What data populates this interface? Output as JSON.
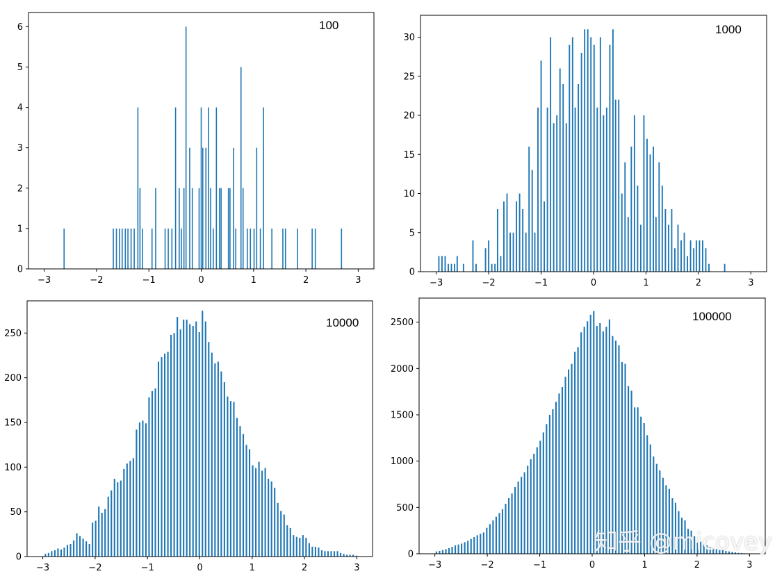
{
  "colors": {
    "bar": "#1f77b4",
    "axis": "#000000",
    "text": "#000000"
  },
  "watermark": {
    "text": "知乎 @micovey"
  },
  "chart_data": [
    {
      "type": "bar",
      "title": "",
      "annotation": "100",
      "xlabel": "",
      "ylabel": "",
      "xlim": [
        -3.3,
        3.3
      ],
      "ylim": [
        0,
        6.35
      ],
      "xticks": [
        -3,
        -2,
        -1,
        0,
        1,
        2,
        3
      ],
      "yticks": [
        0,
        1,
        2,
        3,
        4,
        5,
        6
      ],
      "bar_width": 0.02,
      "x": [
        -2.62,
        -1.68,
        -1.62,
        -1.56,
        -1.51,
        -1.45,
        -1.4,
        -1.34,
        -1.28,
        -1.21,
        -1.17,
        -1.12,
        -0.94,
        -0.87,
        -0.69,
        -0.63,
        -0.56,
        -0.49,
        -0.42,
        -0.38,
        -0.33,
        -0.29,
        -0.22,
        -0.17,
        -0.04,
        0.0,
        0.03,
        0.09,
        0.14,
        0.18,
        0.23,
        0.29,
        0.35,
        0.38,
        0.52,
        0.55,
        0.62,
        0.66,
        0.76,
        0.8,
        0.88,
        0.94,
        1.01,
        1.06,
        1.13,
        1.19,
        1.35,
        1.56,
        1.61,
        1.84,
        2.12,
        2.18,
        2.68
      ],
      "values": [
        1,
        1,
        1,
        1,
        1,
        1,
        1,
        1,
        1,
        4,
        2,
        1,
        1,
        2,
        1,
        1,
        1,
        4,
        2,
        1,
        2,
        6,
        3,
        2,
        2,
        4,
        3,
        3,
        4,
        2,
        1,
        4,
        2,
        2,
        2,
        2,
        3,
        1,
        5,
        2,
        1,
        1,
        1,
        3,
        1,
        4,
        1,
        1,
        1,
        1,
        1,
        1,
        1
      ]
    },
    {
      "type": "bar",
      "title": "",
      "annotation": "1000",
      "xlabel": "",
      "ylabel": "",
      "xlim": [
        -3.3,
        3.3
      ],
      "ylim": [
        0,
        32.8
      ],
      "xticks": [
        -3,
        -2,
        -1,
        0,
        1,
        2,
        3
      ],
      "yticks": [
        0,
        5,
        10,
        15,
        20,
        25,
        30
      ],
      "bar_width": 0.025,
      "x": [
        -2.95,
        -2.89,
        -2.83,
        -2.77,
        -2.71,
        -2.65,
        -2.6,
        -2.54,
        -2.48,
        -2.42,
        -2.36,
        -2.3,
        -2.24,
        -2.18,
        -2.12,
        -2.06,
        -2.0,
        -1.94,
        -1.88,
        -1.83,
        -1.77,
        -1.71,
        -1.65,
        -1.59,
        -1.53,
        -1.47,
        -1.41,
        -1.35,
        -1.29,
        -1.23,
        -1.17,
        -1.12,
        -1.06,
        -1.0,
        -0.94,
        -0.88,
        -0.82,
        -0.76,
        -0.7,
        -0.64,
        -0.58,
        -0.52,
        -0.46,
        -0.4,
        -0.35,
        -0.29,
        -0.23,
        -0.17,
        -0.11,
        -0.05,
        0.01,
        0.07,
        0.13,
        0.19,
        0.25,
        0.31,
        0.37,
        0.42,
        0.48,
        0.54,
        0.6,
        0.66,
        0.72,
        0.78,
        0.84,
        0.9,
        0.96,
        1.02,
        1.08,
        1.14,
        1.19,
        1.25,
        1.31,
        1.37,
        1.43,
        1.49,
        1.55,
        1.61,
        1.67,
        1.73,
        1.79,
        1.85,
        1.91,
        1.96,
        2.02,
        2.08,
        2.14,
        2.2,
        2.26,
        2.32,
        2.38,
        2.44,
        2.5
      ],
      "values": [
        2,
        2,
        2,
        1,
        1,
        1,
        2,
        0,
        1,
        0,
        0,
        4,
        1,
        0,
        0,
        3,
        4,
        1,
        1,
        8,
        2,
        9,
        10,
        5,
        5,
        9,
        10,
        8,
        5,
        16,
        13,
        5,
        21,
        27,
        9,
        21,
        30,
        19,
        20,
        26,
        24,
        19,
        29,
        30,
        21,
        24,
        28,
        31,
        31,
        30,
        29,
        21,
        30,
        20,
        21,
        29,
        31,
        22,
        22,
        10,
        14,
        7,
        16,
        20,
        11,
        6,
        20,
        17,
        15,
        16,
        7,
        14,
        11,
        8,
        6,
        8,
        3,
        6,
        4,
        5,
        2,
        4,
        3,
        4,
        4,
        4,
        3,
        1,
        0,
        0,
        0,
        0,
        1
      ]
    },
    {
      "type": "bar",
      "title": "",
      "annotation": "10000",
      "xlabel": "",
      "ylabel": "",
      "xlim": [
        -3.3,
        3.3
      ],
      "ylim": [
        0,
        286
      ],
      "xticks": [
        -3,
        -2,
        -1,
        0,
        1,
        2,
        3
      ],
      "yticks": [
        0,
        50,
        100,
        150,
        200,
        250
      ],
      "bar_width": 0.028,
      "x": [
        -2.95,
        -2.89,
        -2.83,
        -2.77,
        -2.71,
        -2.65,
        -2.59,
        -2.53,
        -2.47,
        -2.41,
        -2.35,
        -2.29,
        -2.23,
        -2.17,
        -2.11,
        -2.05,
        -1.99,
        -1.93,
        -1.87,
        -1.81,
        -1.75,
        -1.69,
        -1.63,
        -1.57,
        -1.51,
        -1.45,
        -1.39,
        -1.33,
        -1.27,
        -1.21,
        -1.15,
        -1.09,
        -1.03,
        -0.97,
        -0.91,
        -0.85,
        -0.79,
        -0.73,
        -0.67,
        -0.61,
        -0.55,
        -0.49,
        -0.43,
        -0.37,
        -0.31,
        -0.25,
        -0.19,
        -0.13,
        -0.07,
        -0.01,
        0.05,
        0.11,
        0.17,
        0.23,
        0.29,
        0.35,
        0.41,
        0.47,
        0.53,
        0.59,
        0.65,
        0.71,
        0.77,
        0.83,
        0.89,
        0.95,
        1.01,
        1.07,
        1.13,
        1.19,
        1.25,
        1.31,
        1.37,
        1.43,
        1.49,
        1.55,
        1.61,
        1.67,
        1.73,
        1.79,
        1.85,
        1.91,
        1.97,
        2.03,
        2.09,
        2.15,
        2.21,
        2.27,
        2.33,
        2.39,
        2.45,
        2.51,
        2.57,
        2.63,
        2.69,
        2.75,
        2.81,
        2.87,
        2.93,
        2.99
      ],
      "values": [
        3,
        4,
        6,
        7,
        9,
        8,
        10,
        13,
        14,
        18,
        26,
        23,
        20,
        17,
        14,
        38,
        40,
        56,
        49,
        53,
        67,
        74,
        87,
        83,
        85,
        98,
        104,
        107,
        110,
        142,
        150,
        152,
        149,
        178,
        185,
        188,
        218,
        223,
        227,
        229,
        248,
        250,
        268,
        254,
        265,
        265,
        260,
        258,
        263,
        251,
        275,
        263,
        240,
        228,
        216,
        218,
        207,
        195,
        179,
        174,
        173,
        155,
        146,
        137,
        125,
        120,
        102,
        99,
        106,
        96,
        99,
        87,
        84,
        77,
        60,
        51,
        47,
        35,
        32,
        24,
        22,
        21,
        24,
        21,
        15,
        11,
        11,
        10,
        7,
        6,
        6,
        6,
        6,
        6,
        4,
        3,
        2,
        2,
        2,
        1
      ]
    },
    {
      "type": "bar",
      "title": "",
      "annotation": "100000",
      "xlabel": "",
      "ylabel": "",
      "xlim": [
        -3.3,
        3.3
      ],
      "ylim": [
        0,
        2760
      ],
      "xticks": [
        -3,
        -2,
        -1,
        0,
        1,
        2,
        3
      ],
      "yticks": [
        0,
        500,
        1000,
        1500,
        2000,
        2500
      ],
      "bar_width": 0.028,
      "x": [
        -2.97,
        -2.91,
        -2.85,
        -2.79,
        -2.73,
        -2.67,
        -2.61,
        -2.55,
        -2.49,
        -2.43,
        -2.37,
        -2.31,
        -2.25,
        -2.19,
        -2.13,
        -2.07,
        -2.01,
        -1.95,
        -1.89,
        -1.83,
        -1.77,
        -1.71,
        -1.65,
        -1.59,
        -1.53,
        -1.47,
        -1.41,
        -1.35,
        -1.29,
        -1.23,
        -1.17,
        -1.11,
        -1.05,
        -0.99,
        -0.93,
        -0.87,
        -0.81,
        -0.75,
        -0.69,
        -0.63,
        -0.57,
        -0.51,
        -0.45,
        -0.39,
        -0.33,
        -0.27,
        -0.21,
        -0.15,
        -0.09,
        -0.03,
        0.03,
        0.09,
        0.15,
        0.21,
        0.27,
        0.33,
        0.39,
        0.45,
        0.51,
        0.57,
        0.63,
        0.69,
        0.75,
        0.81,
        0.87,
        0.93,
        0.99,
        1.05,
        1.11,
        1.17,
        1.23,
        1.29,
        1.35,
        1.41,
        1.47,
        1.53,
        1.59,
        1.65,
        1.71,
        1.77,
        1.83,
        1.89,
        1.95,
        2.01,
        2.07,
        2.13,
        2.19,
        2.25,
        2.31,
        2.37,
        2.43,
        2.49,
        2.55,
        2.61,
        2.67,
        2.73,
        2.79,
        2.85,
        2.91,
        2.97
      ],
      "values": [
        25,
        30,
        40,
        50,
        60,
        75,
        90,
        100,
        110,
        125,
        140,
        160,
        180,
        200,
        215,
        230,
        280,
        320,
        360,
        400,
        440,
        480,
        540,
        600,
        650,
        720,
        780,
        830,
        880,
        950,
        1020,
        1080,
        1150,
        1220,
        1310,
        1400,
        1500,
        1560,
        1640,
        1730,
        1800,
        1910,
        1990,
        2050,
        2180,
        2230,
        2390,
        2450,
        2510,
        2580,
        2620,
        2460,
        2490,
        2400,
        2450,
        2530,
        2350,
        2300,
        2250,
        2070,
        2050,
        1810,
        1760,
        1580,
        1580,
        1480,
        1410,
        1280,
        1180,
        1050,
        970,
        900,
        820,
        740,
        700,
        600,
        550,
        460,
        390,
        360,
        270,
        250,
        190,
        120,
        130,
        100,
        90,
        70,
        60,
        50,
        40,
        40,
        30,
        25,
        20,
        15,
        10,
        8,
        5,
        3
      ]
    }
  ]
}
